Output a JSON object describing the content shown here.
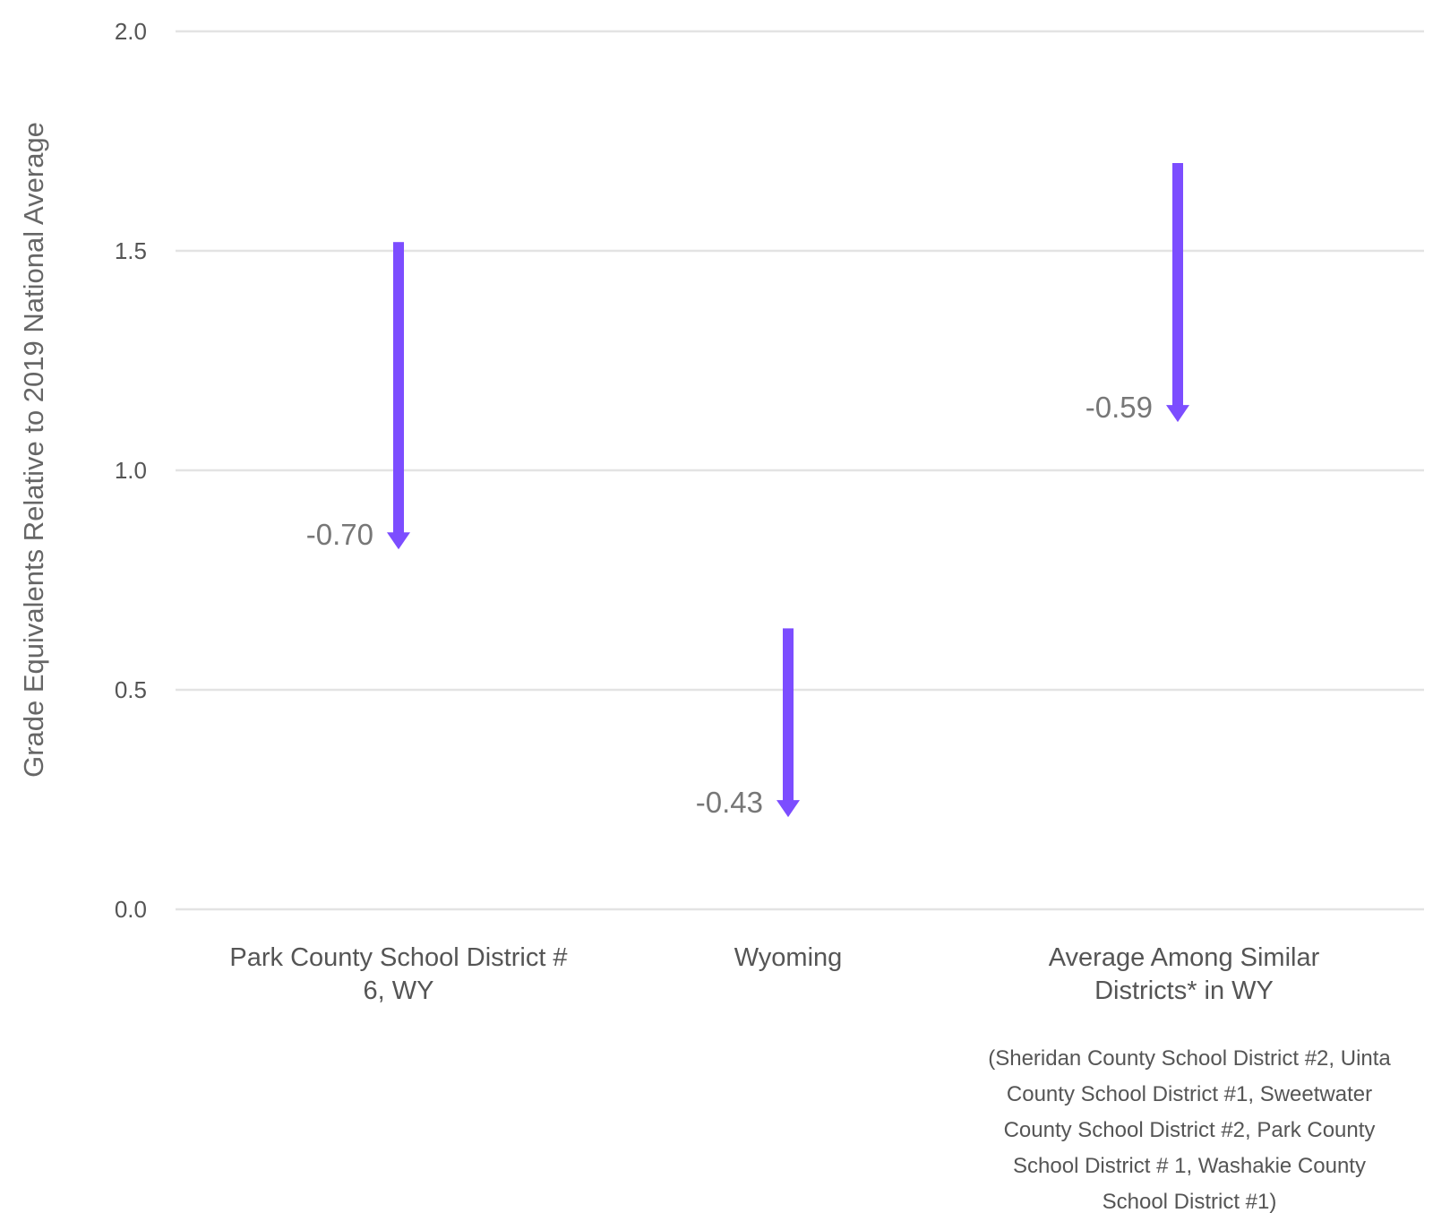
{
  "chart_data": {
    "type": "arrow",
    "xlabel": "",
    "ylabel": "Grade Equivalents Relative to 2019 National Average",
    "ylim": [
      0,
      2.0
    ],
    "yticks": [
      "0.0",
      "0.5",
      "1.0",
      "1.5",
      "2.0"
    ],
    "grid": true,
    "categories": [
      [
        "Park County School District #",
        "6, WY"
      ],
      [
        "Wyoming"
      ],
      [
        "Average Among Similar",
        "Districts* in WY"
      ]
    ],
    "points": [
      {
        "start": 1.52,
        "end": 0.82,
        "change_label": "-0.70"
      },
      {
        "start": 0.64,
        "end": 0.21,
        "change_label": "-0.43"
      },
      {
        "start": 1.7,
        "end": 1.11,
        "change_label": "-0.59"
      }
    ],
    "footnote_lines": [
      "(Sheridan County School District #2, Uinta",
      "County School District #1, Sweetwater",
      "County School District #2, Park County",
      "School District # 1, Washakie County",
      "School District #1)"
    ],
    "colors": {
      "arrow": "#7c4dff",
      "grid": "#e3e3e3",
      "text": "#555555",
      "value_text": "#777777"
    }
  }
}
